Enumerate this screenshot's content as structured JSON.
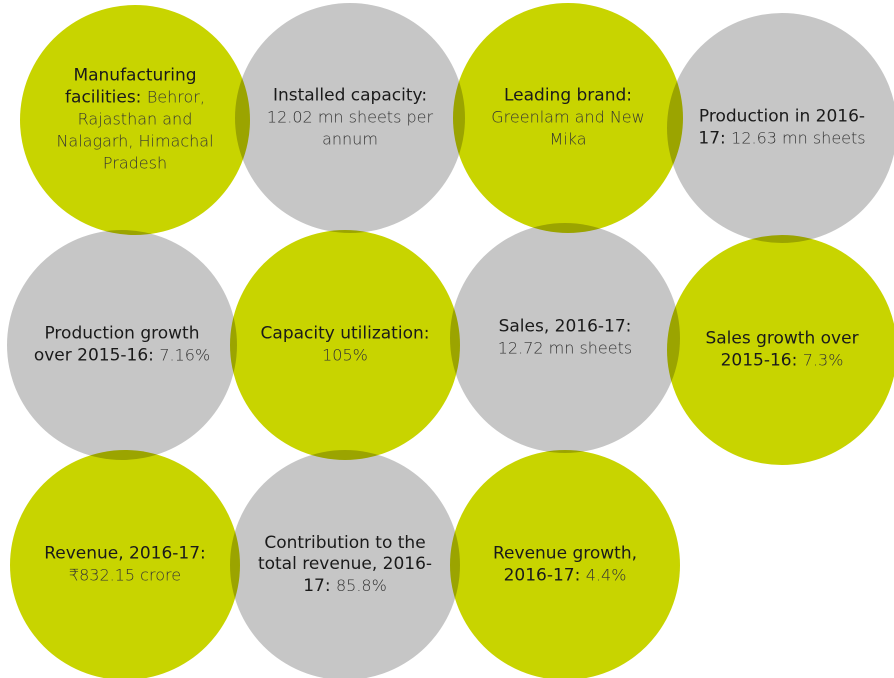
{
  "circles": [
    {
      "label": "Manufacturing facilities:",
      "value": "Behror, Rajasthan and Nalagarh, Himachal Pradesh",
      "color": "#c8d400"
    },
    {
      "label": "Installed capacity:",
      "value": "12.02 mn sheets per annum",
      "color": "#c6c6c6"
    },
    {
      "label": "Leading brand:",
      "value": "Greenlam and New Mika",
      "color": "#c8d400"
    },
    {
      "label": "Production in 2016-17:",
      "value": "12.63 mn sheets",
      "color": "#c6c6c6"
    },
    {
      "label": "Production growth over 2015-16:",
      "value": "7.16%",
      "color": "#c6c6c6"
    },
    {
      "label": "Capacity utilization:",
      "value": "105%",
      "color": "#c8d400"
    },
    {
      "label": "Sales, 2016-17:",
      "value": "12.72 mn sheets",
      "color": "#c6c6c6"
    },
    {
      "label": "Sales growth over 2015-16:",
      "value": "7.3%",
      "color": "#c8d400"
    },
    {
      "label": "Revenue, 2016-17:",
      "value": "₹832.15 crore",
      "color": "#c8d400"
    },
    {
      "label": "Contribution to the total revenue, 2016-17:",
      "value": "85.8%",
      "color": "#c6c6c6"
    },
    {
      "label": "Revenue growth, 2016-17:",
      "value": "4.4%",
      "color": "#c8d400"
    }
  ]
}
